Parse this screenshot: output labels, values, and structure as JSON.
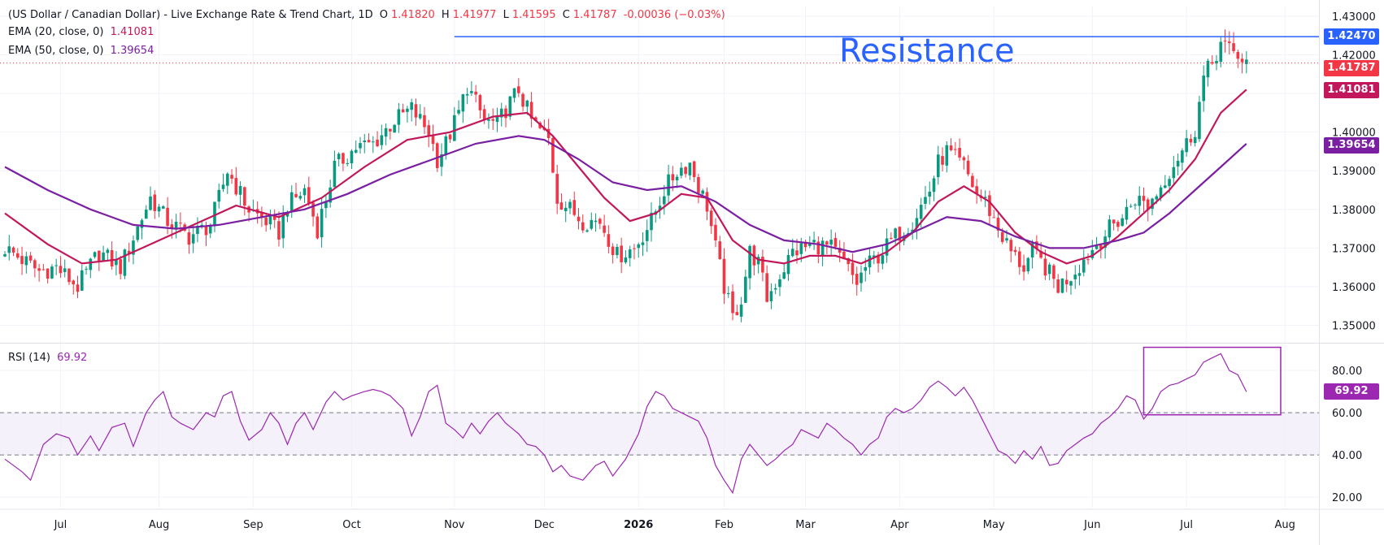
{
  "header": {
    "title": "(US Dollar / Canadian Dollar) - Live Exchange Rate & Trend Chart, 1D",
    "open_key": "O",
    "open": "1.41820",
    "high_key": "H",
    "high": "1.41977",
    "low_key": "L",
    "low": "1.41595",
    "close_key": "C",
    "close": "1.41787",
    "change": "-0.00036 (−0.03%)"
  },
  "indicators": {
    "ema20": {
      "label": "EMA (20, close, 0)",
      "value": "1.41081",
      "color": "#c2185b"
    },
    "ema50": {
      "label": "EMA (50, close, 0)",
      "value": "1.39654",
      "color": "#7b1fa2"
    },
    "rsi": {
      "label": "RSI (14)",
      "value": "69.92",
      "color": "#9c27b0"
    }
  },
  "annotation": {
    "resistance_text": "Resistance",
    "resistance_level": 1.4247,
    "color": "#2962ff"
  },
  "badges": {
    "resistance": {
      "text": "1.42470",
      "color": "#2962ff"
    },
    "price": {
      "text": "1.41787",
      "color": "#f23645"
    },
    "ema20": {
      "text": "1.41081",
      "color": "#c2185b"
    },
    "ema50": {
      "text": "1.39654",
      "color": "#7b1fa2"
    },
    "rsi": {
      "text": "69.92",
      "color": "#9c27b0"
    }
  },
  "chart_data": [
    {
      "type": "candlestick",
      "title": "(US Dollar / Canadian Dollar) - Live Exchange Rate & Trend Chart, 1D",
      "x_ticks": [
        "Jul",
        "Aug",
        "Sep",
        "Oct",
        "Nov",
        "Dec",
        "2026",
        "Feb",
        "Mar",
        "Apr",
        "May",
        "Jun",
        "Jul",
        "Aug"
      ],
      "y_ticks": [
        1.43,
        1.42,
        1.41,
        1.4,
        1.39,
        1.38,
        1.37,
        1.36,
        1.35
      ],
      "y_tick_labels": [
        "1.43000",
        "1.42000",
        "1.41000",
        "1.40000",
        "1.39000",
        "1.38000",
        "1.37000",
        "1.36000",
        "1.35000"
      ],
      "ylim": [
        1.3455,
        1.4325
      ],
      "grid": true,
      "up_color": "#089981",
      "down_color": "#f23645",
      "close_path": [
        [
          0,
          1.37
        ],
        [
          8,
          1.364
        ],
        [
          12,
          1.365
        ],
        [
          17,
          1.36
        ],
        [
          22,
          1.369
        ],
        [
          27,
          1.365
        ],
        [
          34,
          1.383
        ],
        [
          38,
          1.377
        ],
        [
          43,
          1.373
        ],
        [
          48,
          1.376
        ],
        [
          52,
          1.39
        ],
        [
          57,
          1.38
        ],
        [
          61,
          1.377
        ],
        [
          64,
          1.374
        ],
        [
          66,
          1.381
        ],
        [
          70,
          1.385
        ],
        [
          73,
          1.375
        ],
        [
          77,
          1.391
        ],
        [
          82,
          1.396
        ],
        [
          86,
          1.397
        ],
        [
          91,
          1.403
        ],
        [
          95,
          1.406
        ],
        [
          99,
          1.4
        ],
        [
          101,
          1.393
        ],
        [
          103,
          1.397
        ],
        [
          106,
          1.405
        ],
        [
          108,
          1.412
        ],
        [
          112,
          1.403
        ],
        [
          115,
          1.402
        ],
        [
          117,
          1.406
        ],
        [
          120,
          1.411
        ],
        [
          123,
          1.403
        ],
        [
          127,
          1.398
        ],
        [
          129,
          1.383
        ],
        [
          132,
          1.38
        ],
        [
          135,
          1.377
        ],
        [
          139,
          1.377
        ],
        [
          143,
          1.368
        ],
        [
          147,
          1.37
        ],
        [
          151,
          1.377
        ],
        [
          154,
          1.385
        ],
        [
          157,
          1.39
        ],
        [
          160,
          1.392
        ],
        [
          162,
          1.386
        ],
        [
          164,
          1.381
        ],
        [
          166,
          1.37
        ],
        [
          168,
          1.36
        ],
        [
          170,
          1.352
        ],
        [
          172,
          1.357
        ],
        [
          174,
          1.369
        ],
        [
          176,
          1.366
        ],
        [
          178,
          1.357
        ],
        [
          180,
          1.361
        ],
        [
          184,
          1.369
        ],
        [
          189,
          1.371
        ],
        [
          193,
          1.37
        ],
        [
          196,
          1.366
        ],
        [
          199,
          1.361
        ],
        [
          201,
          1.365
        ],
        [
          204,
          1.368
        ],
        [
          208,
          1.373
        ],
        [
          212,
          1.377
        ],
        [
          216,
          1.385
        ],
        [
          218,
          1.392
        ],
        [
          220,
          1.395
        ],
        [
          224,
          1.391
        ],
        [
          227,
          1.384
        ],
        [
          229,
          1.382
        ],
        [
          232,
          1.375
        ],
        [
          235,
          1.369
        ],
        [
          238,
          1.365
        ],
        [
          240,
          1.369
        ],
        [
          243,
          1.365
        ],
        [
          246,
          1.36
        ],
        [
          249,
          1.363
        ],
        [
          252,
          1.367
        ],
        [
          255,
          1.371
        ],
        [
          258,
          1.375
        ],
        [
          261,
          1.378
        ],
        [
          264,
          1.383
        ],
        [
          267,
          1.381
        ],
        [
          270,
          1.386
        ],
        [
          273,
          1.392
        ],
        [
          276,
          1.397
        ],
        [
          278,
          1.401
        ],
        [
          280,
          1.414
        ],
        [
          282,
          1.418
        ],
        [
          284,
          1.423
        ],
        [
          286,
          1.421
        ],
        [
          288,
          1.42
        ],
        [
          290,
          1.418
        ]
      ],
      "series": [
        {
          "name": "EMA (20, close, 0)",
          "color": "#c2185b",
          "path": [
            [
              0,
              1.379
            ],
            [
              10,
              1.371
            ],
            [
              18,
              1.366
            ],
            [
              26,
              1.367
            ],
            [
              34,
              1.371
            ],
            [
              44,
              1.376
            ],
            [
              54,
              1.381
            ],
            [
              64,
              1.378
            ],
            [
              74,
              1.383
            ],
            [
              84,
              1.391
            ],
            [
              94,
              1.398
            ],
            [
              104,
              1.4
            ],
            [
              114,
              1.404
            ],
            [
              122,
              1.405
            ],
            [
              128,
              1.399
            ],
            [
              134,
              1.391
            ],
            [
              140,
              1.383
            ],
            [
              146,
              1.377
            ],
            [
              152,
              1.379
            ],
            [
              158,
              1.384
            ],
            [
              164,
              1.383
            ],
            [
              170,
              1.372
            ],
            [
              176,
              1.367
            ],
            [
              182,
              1.366
            ],
            [
              188,
              1.368
            ],
            [
              194,
              1.368
            ],
            [
              200,
              1.366
            ],
            [
              206,
              1.369
            ],
            [
              212,
              1.374
            ],
            [
              218,
              1.382
            ],
            [
              224,
              1.386
            ],
            [
              230,
              1.382
            ],
            [
              236,
              1.374
            ],
            [
              242,
              1.369
            ],
            [
              248,
              1.366
            ],
            [
              254,
              1.368
            ],
            [
              260,
              1.373
            ],
            [
              266,
              1.379
            ],
            [
              272,
              1.385
            ],
            [
              278,
              1.393
            ],
            [
              284,
              1.405
            ],
            [
              290,
              1.411
            ]
          ]
        },
        {
          "name": "EMA (50, close, 0)",
          "color": "#7b1fa2",
          "path": [
            [
              0,
              1.391
            ],
            [
              10,
              1.385
            ],
            [
              20,
              1.38
            ],
            [
              30,
              1.376
            ],
            [
              40,
              1.375
            ],
            [
              50,
              1.376
            ],
            [
              60,
              1.378
            ],
            [
              70,
              1.38
            ],
            [
              80,
              1.384
            ],
            [
              90,
              1.389
            ],
            [
              100,
              1.393
            ],
            [
              110,
              1.397
            ],
            [
              120,
              1.399
            ],
            [
              126,
              1.398
            ],
            [
              134,
              1.393
            ],
            [
              142,
              1.387
            ],
            [
              150,
              1.385
            ],
            [
              158,
              1.386
            ],
            [
              166,
              1.382
            ],
            [
              174,
              1.376
            ],
            [
              182,
              1.372
            ],
            [
              190,
              1.371
            ],
            [
              198,
              1.369
            ],
            [
              206,
              1.371
            ],
            [
              214,
              1.375
            ],
            [
              220,
              1.378
            ],
            [
              228,
              1.377
            ],
            [
              236,
              1.373
            ],
            [
              244,
              1.37
            ],
            [
              252,
              1.37
            ],
            [
              260,
              1.372
            ],
            [
              266,
              1.374
            ],
            [
              272,
              1.379
            ],
            [
              278,
              1.385
            ],
            [
              284,
              1.391
            ],
            [
              290,
              1.397
            ]
          ]
        }
      ],
      "resistance": 1.4247
    },
    {
      "type": "line",
      "name": "RSI (14)",
      "color": "#9c27b0",
      "y_ticks": [
        80,
        60,
        40,
        20
      ],
      "y_tick_labels": [
        "80.00",
        "60.00",
        "40.00",
        "20.00"
      ],
      "ylim": [
        15,
        92
      ],
      "band": [
        40,
        60
      ],
      "band_color": "#ede7f6",
      "x_ticks": [
        "Jul",
        "Aug",
        "Sep",
        "Oct",
        "Nov",
        "Dec",
        "2026",
        "Feb",
        "Mar",
        "Apr",
        "May",
        "Jun",
        "Jul",
        "Aug"
      ],
      "path": [
        [
          0,
          38
        ],
        [
          4,
          32
        ],
        [
          6,
          28
        ],
        [
          9,
          45
        ],
        [
          12,
          50
        ],
        [
          15,
          48
        ],
        [
          17,
          40
        ],
        [
          20,
          49
        ],
        [
          22,
          42
        ],
        [
          25,
          53
        ],
        [
          28,
          55
        ],
        [
          30,
          44
        ],
        [
          33,
          60
        ],
        [
          35,
          66
        ],
        [
          37,
          70
        ],
        [
          39,
          58
        ],
        [
          41,
          55
        ],
        [
          44,
          52
        ],
        [
          47,
          60
        ],
        [
          49,
          58
        ],
        [
          51,
          68
        ],
        [
          53,
          70
        ],
        [
          55,
          56
        ],
        [
          57,
          47
        ],
        [
          60,
          52
        ],
        [
          62,
          60
        ],
        [
          64,
          55
        ],
        [
          66,
          45
        ],
        [
          68,
          55
        ],
        [
          70,
          60
        ],
        [
          72,
          52
        ],
        [
          75,
          65
        ],
        [
          77,
          70
        ],
        [
          79,
          66
        ],
        [
          81,
          68
        ],
        [
          84,
          70
        ],
        [
          86,
          71
        ],
        [
          88,
          70
        ],
        [
          90,
          68
        ],
        [
          93,
          62
        ],
        [
          95,
          49
        ],
        [
          97,
          58
        ],
        [
          99,
          70
        ],
        [
          101,
          73
        ],
        [
          103,
          55
        ],
        [
          105,
          52
        ],
        [
          107,
          48
        ],
        [
          109,
          55
        ],
        [
          111,
          50
        ],
        [
          113,
          56
        ],
        [
          115,
          60
        ],
        [
          117,
          55
        ],
        [
          120,
          50
        ],
        [
          122,
          45
        ],
        [
          124,
          44
        ],
        [
          126,
          40
        ],
        [
          128,
          32
        ],
        [
          130,
          35
        ],
        [
          132,
          30
        ],
        [
          135,
          28
        ],
        [
          138,
          35
        ],
        [
          140,
          37
        ],
        [
          142,
          30
        ],
        [
          145,
          38
        ],
        [
          148,
          50
        ],
        [
          150,
          63
        ],
        [
          152,
          70
        ],
        [
          154,
          68
        ],
        [
          156,
          62
        ],
        [
          158,
          60
        ],
        [
          160,
          58
        ],
        [
          162,
          56
        ],
        [
          164,
          48
        ],
        [
          166,
          35
        ],
        [
          168,
          28
        ],
        [
          170,
          22
        ],
        [
          172,
          38
        ],
        [
          174,
          45
        ],
        [
          176,
          40
        ],
        [
          178,
          35
        ],
        [
          180,
          38
        ],
        [
          182,
          42
        ],
        [
          184,
          45
        ],
        [
          186,
          52
        ],
        [
          188,
          50
        ],
        [
          190,
          48
        ],
        [
          192,
          55
        ],
        [
          194,
          52
        ],
        [
          196,
          48
        ],
        [
          198,
          45
        ],
        [
          200,
          40
        ],
        [
          202,
          45
        ],
        [
          204,
          48
        ],
        [
          206,
          58
        ],
        [
          208,
          62
        ],
        [
          210,
          60
        ],
        [
          212,
          62
        ],
        [
          214,
          66
        ],
        [
          216,
          72
        ],
        [
          218,
          75
        ],
        [
          220,
          72
        ],
        [
          222,
          68
        ],
        [
          224,
          72
        ],
        [
          226,
          66
        ],
        [
          228,
          58
        ],
        [
          230,
          50
        ],
        [
          232,
          42
        ],
        [
          234,
          40
        ],
        [
          236,
          36
        ],
        [
          238,
          42
        ],
        [
          240,
          38
        ],
        [
          242,
          44
        ],
        [
          244,
          35
        ],
        [
          246,
          36
        ],
        [
          248,
          42
        ],
        [
          250,
          45
        ],
        [
          252,
          48
        ],
        [
          254,
          50
        ],
        [
          256,
          55
        ],
        [
          258,
          58
        ],
        [
          260,
          62
        ],
        [
          262,
          68
        ],
        [
          264,
          66
        ],
        [
          266,
          57
        ],
        [
          268,
          62
        ],
        [
          270,
          70
        ],
        [
          272,
          73
        ],
        [
          274,
          74
        ],
        [
          276,
          76
        ],
        [
          278,
          78
        ],
        [
          280,
          84
        ],
        [
          282,
          86
        ],
        [
          284,
          88
        ],
        [
          286,
          80
        ],
        [
          288,
          78
        ],
        [
          290,
          69.92
        ]
      ],
      "highlight_box": {
        "x_start": 266,
        "x_end": 298,
        "y_low": 59,
        "y_high": 91,
        "color": "#9c27b0"
      }
    }
  ]
}
